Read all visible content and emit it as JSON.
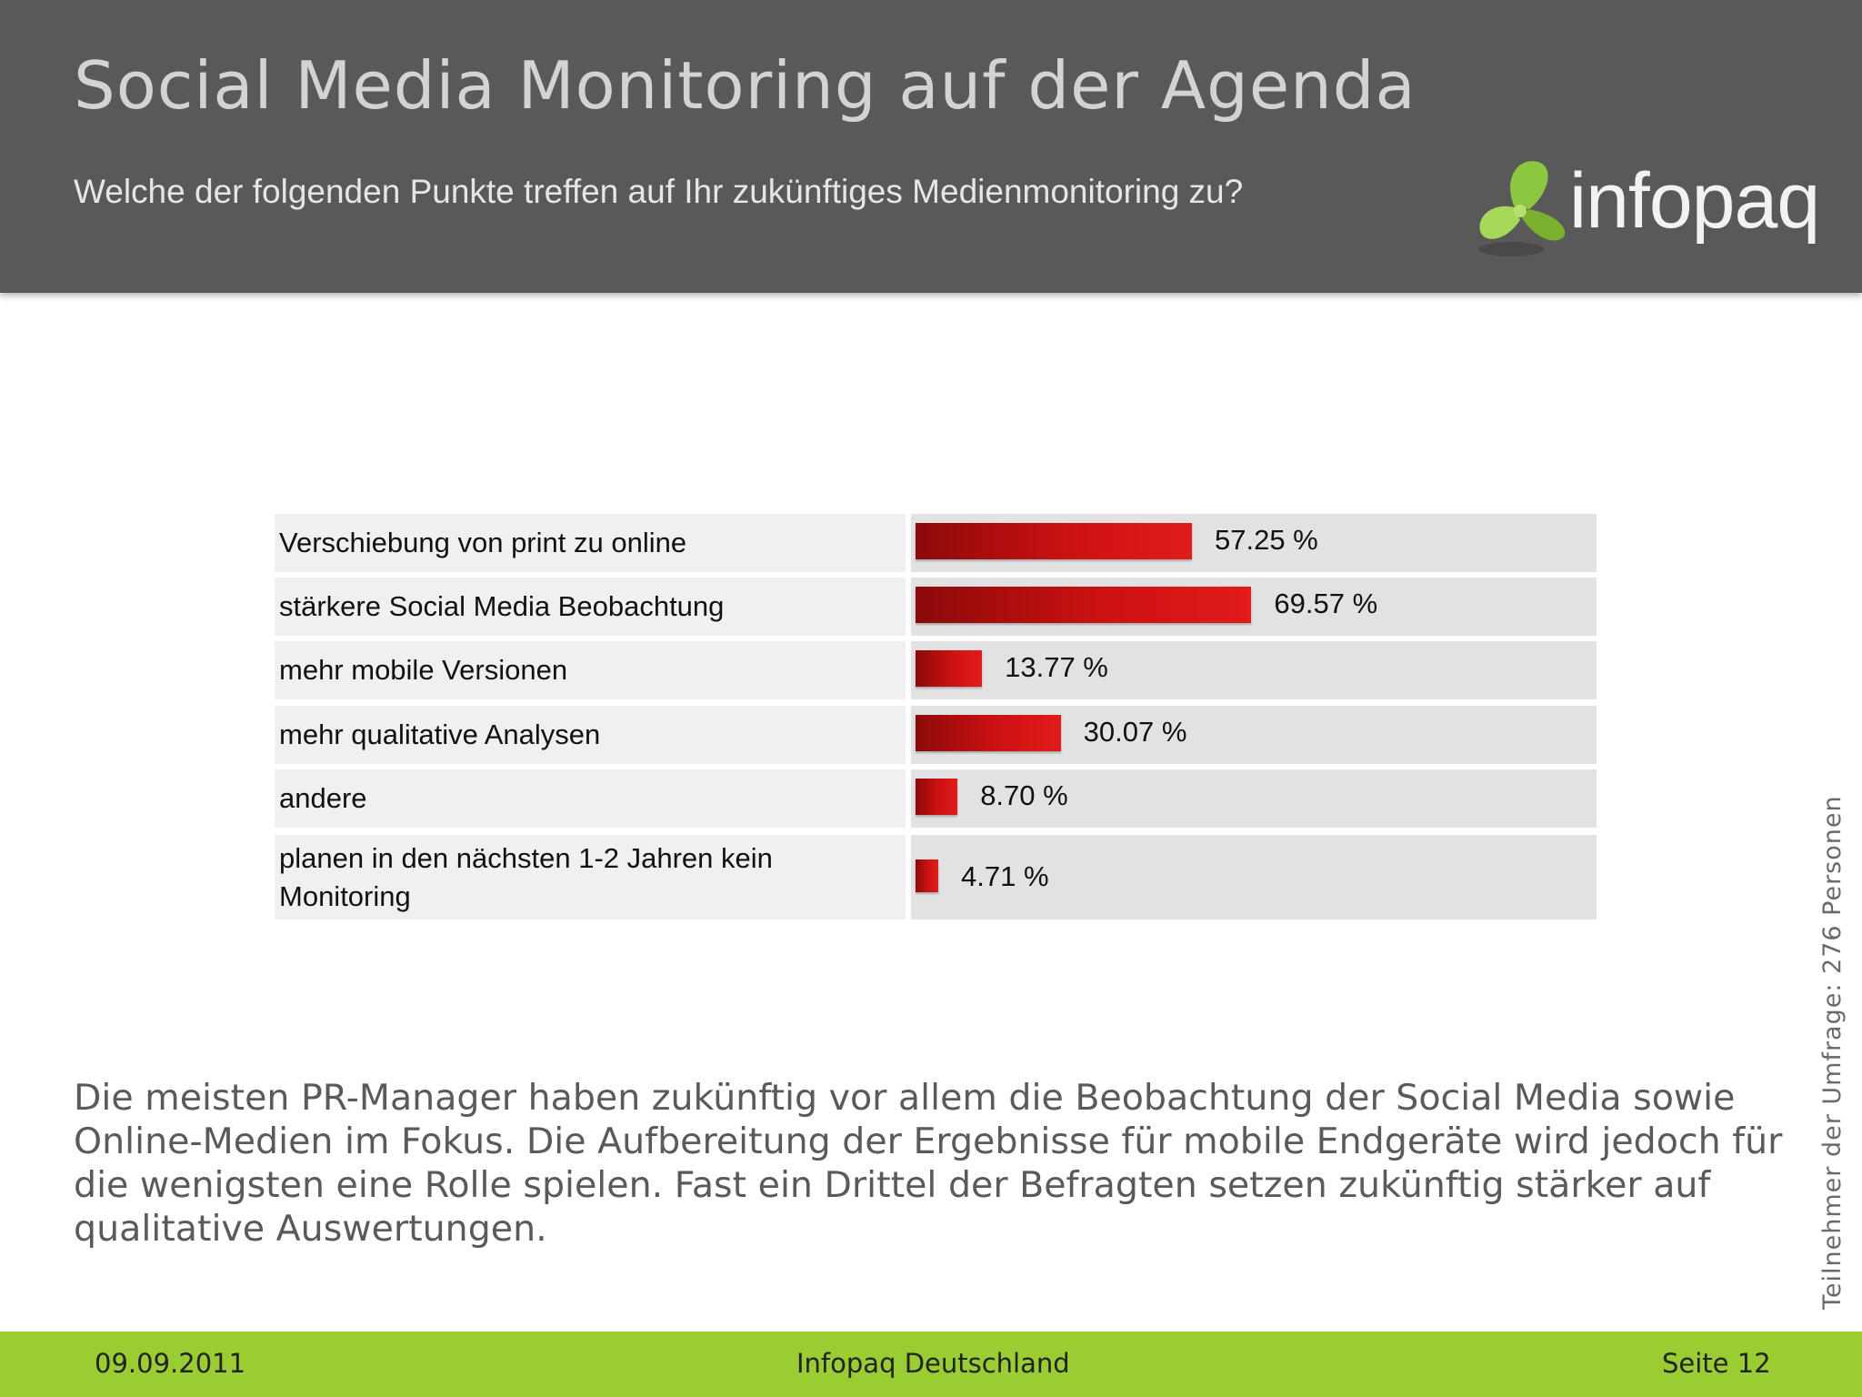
{
  "header": {
    "title": "Social Media Monitoring auf der Agenda",
    "subtitle": "Welche der folgenden Punkte treffen auf Ihr zukünftiges Medienmonitoring zu?",
    "logo_text": "infopaq"
  },
  "chart_data": {
    "type": "bar",
    "orientation": "horizontal",
    "categories": [
      "Verschiebung von print zu online",
      "stärkere Social Media Beobachtung",
      "mehr mobile Versionen",
      "mehr qualitative Analysen",
      "andere",
      "planen in den nächsten 1-2 Jahren kein Monitoring"
    ],
    "values": [
      57.25,
      69.57,
      13.77,
      30.07,
      8.7,
      4.71
    ],
    "value_labels": [
      "57.25 %",
      "69.57 %",
      "13.77 %",
      "30.07 %",
      "8.70 %",
      "4.71 %"
    ],
    "unit": "%",
    "xlim": [
      0,
      100
    ],
    "grid": false,
    "legend": "none",
    "bar_color": "#cc1111"
  },
  "note": "Die meisten PR-Manager haben zukünftig vor allem die Beobachtung der Social Media sowie Online-Medien im Fokus. Die Aufbereitung der Ergebnisse für mobile Endgeräte wird jedoch für die wenigsten eine Rolle spielen. Fast ein Drittel der Befragten setzen zukünftig stärker auf qualitative Auswertungen.",
  "side_note": "Teilnehmer der Umfrage: 276 Personen",
  "footer": {
    "date": "09.09.2011",
    "company": "Infopaq Deutschland",
    "page": "Seite 12"
  },
  "colors": {
    "header_bg": "#595959",
    "footer_bg": "#9acd32",
    "logo_green": "#8dc63f"
  }
}
